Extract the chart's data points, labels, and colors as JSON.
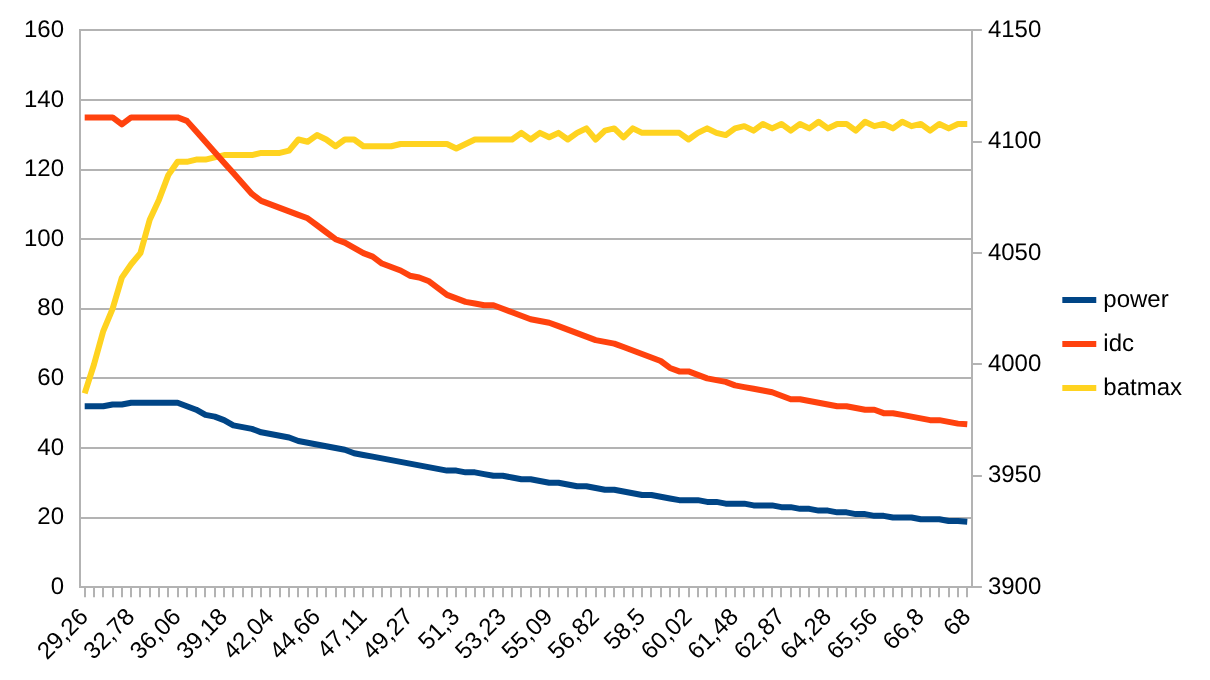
{
  "chart_data": {
    "type": "line",
    "categories": [
      "29,26",
      null,
      null,
      null,
      null,
      "32,78",
      null,
      null,
      null,
      null,
      "36,06",
      null,
      null,
      null,
      null,
      "39,18",
      null,
      null,
      null,
      null,
      "42,04",
      null,
      null,
      null,
      null,
      "44,66",
      null,
      null,
      null,
      null,
      "47,11",
      null,
      null,
      null,
      null,
      "49,27",
      null,
      null,
      null,
      null,
      "51,3",
      null,
      null,
      null,
      null,
      "53,23",
      null,
      null,
      null,
      null,
      "55,09",
      null,
      null,
      null,
      null,
      "56,82",
      null,
      null,
      null,
      null,
      "58,5",
      null,
      null,
      null,
      null,
      "60,02",
      null,
      null,
      null,
      null,
      "61,48",
      null,
      null,
      null,
      null,
      "62,87",
      null,
      null,
      null,
      null,
      "64,28",
      null,
      null,
      null,
      null,
      "65,56",
      null,
      null,
      null,
      null,
      "66,8",
      null,
      null,
      null,
      null,
      "68"
    ],
    "series": [
      {
        "name": "power",
        "color": "#004586",
        "values": [
          52,
          52,
          52,
          52.5,
          52.5,
          53,
          53,
          53,
          53,
          53,
          53,
          52,
          51,
          49.5,
          49,
          48,
          46.5,
          46,
          45.5,
          44.5,
          44,
          43.5,
          43,
          42,
          41.5,
          41,
          40.5,
          40,
          39.5,
          38.5,
          38,
          37.5,
          37,
          36.5,
          36,
          35.5,
          35,
          34.5,
          34,
          33.5,
          33.5,
          33,
          33,
          32.5,
          32,
          32,
          31.5,
          31,
          31,
          30.5,
          30,
          30,
          29.5,
          29,
          29,
          28.5,
          28,
          28,
          27.5,
          27,
          26.5,
          26.5,
          26,
          25.5,
          25,
          25,
          25,
          24.5,
          24.5,
          24,
          24,
          24,
          23.5,
          23.5,
          23.5,
          23,
          23,
          22.5,
          22.5,
          22,
          22,
          21.5,
          21.5,
          21,
          21,
          20.5,
          20.5,
          20,
          20,
          20,
          19.5,
          19.5,
          19.5,
          19,
          19,
          18.8
        ]
      },
      {
        "name": "idc",
        "color": "#ff420e",
        "values": [
          135,
          135,
          135,
          135,
          133,
          135,
          135,
          135,
          135,
          135,
          135,
          134,
          131,
          128,
          125,
          122,
          119,
          116,
          113,
          111,
          110,
          109,
          108,
          107,
          106,
          104,
          102,
          100,
          99,
          97.5,
          96,
          95,
          93,
          92,
          91,
          89.5,
          89,
          88,
          86,
          84,
          83,
          82,
          81.5,
          81,
          81,
          80,
          79,
          78,
          77,
          76.5,
          76,
          75,
          74,
          73,
          72,
          71,
          70.5,
          70,
          69,
          68,
          67,
          66,
          65,
          63,
          62,
          62,
          61,
          60,
          59.5,
          59,
          58,
          57.5,
          57,
          56.5,
          56,
          55,
          54,
          54,
          53.5,
          53,
          52.5,
          52,
          52,
          51.5,
          51,
          51,
          50,
          50,
          49.5,
          49,
          48.5,
          48,
          48,
          47.5,
          47,
          46.8
        ]
      },
      {
        "name": "batmax",
        "color": "#ffd320",
        "axis": "y2",
        "values": [
          3987,
          4000,
          4015,
          4025,
          4039,
          4045,
          4050,
          4065,
          4074,
          4085,
          4091,
          4091,
          4092,
          4092,
          4093,
          4094,
          4094,
          4094,
          4094,
          4095,
          4095,
          4095,
          4096,
          4101,
          4100,
          4103,
          4101,
          4098,
          4101,
          4101,
          4098,
          4098,
          4098,
          4098,
          4099,
          4099,
          4099,
          4099,
          4099,
          4099,
          4097,
          4099,
          4101,
          4101,
          4101,
          4101,
          4101,
          4104,
          4101,
          4104,
          4102,
          4104,
          4101,
          4104,
          4106,
          4101,
          4105,
          4106,
          4102,
          4106,
          4104,
          4104,
          4104,
          4104,
          4104,
          4101,
          4104,
          4106,
          4104,
          4103,
          4106,
          4107,
          4105,
          4108,
          4106,
          4108,
          4105,
          4108,
          4106,
          4109,
          4106,
          4108,
          4108,
          4105,
          4109,
          4107,
          4108,
          4106,
          4109,
          4107,
          4108,
          4105,
          4108,
          4106,
          4108,
          4108
        ]
      }
    ],
    "ylim": [
      0,
      160
    ],
    "yticks": [
      0,
      20,
      40,
      60,
      80,
      100,
      120,
      140,
      160
    ],
    "y2lim": [
      3900,
      4150
    ],
    "y2ticks": [
      3900,
      3950,
      4000,
      4050,
      4100,
      4150
    ],
    "grid": "y",
    "legend": "right",
    "marker": "none",
    "line_style": "solid"
  }
}
